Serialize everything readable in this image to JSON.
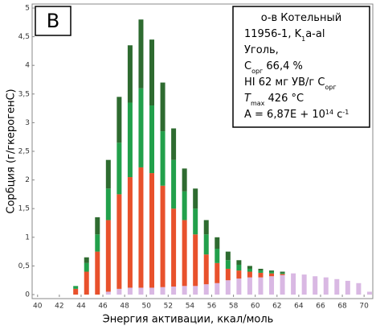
{
  "chart_data": {
    "type": "stacked_bar",
    "panel_label": "B",
    "xlabel": "Энергия активации, ккал/моль",
    "ylabel": "Сорбция  (г/гкерогенС)",
    "x": [
      43.5,
      44.5,
      45.5,
      46.5,
      47.5,
      48.5,
      49.5,
      50.5,
      51.5,
      52.5,
      53.5,
      54.5,
      55.5,
      56.5,
      57.5,
      58.5,
      59.5,
      60.5,
      61.5,
      62.5,
      63.5,
      64.5,
      65.5,
      66.5,
      67.5,
      68.5,
      69.5,
      70.5
    ],
    "series": [
      {
        "color": "#d9b8e3",
        "values": [
          0,
          0,
          0,
          0.05,
          0.1,
          0.12,
          0.12,
          0.12,
          0.13,
          0.14,
          0.15,
          0.15,
          0.18,
          0.2,
          0.25,
          0.28,
          0.3,
          0.3,
          0.32,
          0.34,
          0.37,
          0.35,
          0.32,
          0.3,
          0.27,
          0.24,
          0.2,
          0.05
        ]
      },
      {
        "color": "#e8512c",
        "values": [
          0.1,
          0.4,
          0.75,
          1.25,
          1.65,
          1.93,
          2.1,
          2.0,
          1.77,
          1.36,
          1.15,
          0.9,
          0.52,
          0.35,
          0.2,
          0.14,
          0.1,
          0.08,
          0.05,
          0.02,
          0,
          0,
          0,
          0,
          0,
          0,
          0,
          0
        ]
      },
      {
        "color": "#22a04b",
        "values": [
          0.05,
          0.15,
          0.3,
          0.55,
          0.9,
          1.3,
          1.38,
          1.18,
          0.95,
          0.85,
          0.5,
          0.45,
          0.35,
          0.25,
          0.15,
          0.1,
          0.05,
          0.04,
          0.03,
          0.02,
          0,
          0,
          0,
          0,
          0,
          0,
          0,
          0
        ]
      },
      {
        "color": "#2e6b30",
        "values": [
          0,
          0.1,
          0.3,
          0.5,
          0.8,
          1.0,
          1.2,
          1.15,
          0.85,
          0.55,
          0.4,
          0.35,
          0.25,
          0.2,
          0.15,
          0.08,
          0.05,
          0.03,
          0.02,
          0.02,
          0,
          0,
          0,
          0,
          0,
          0,
          0,
          0
        ]
      }
    ],
    "xlim": [
      39.5,
      70.8
    ],
    "xticks": [
      40,
      42,
      44,
      46,
      48,
      50,
      52,
      54,
      56,
      58,
      60,
      62,
      64,
      66,
      68,
      70
    ],
    "ylim": [
      0,
      5
    ],
    "yticks": [
      0,
      {
        "value": 0.5,
        "label": "0,5"
      },
      1,
      {
        "value": 1.5,
        "label": "1,5"
      },
      2,
      {
        "value": 2.5,
        "label": "2,5"
      },
      3,
      {
        "value": 3.5,
        "label": "3,5"
      },
      4,
      {
        "value": 4.5,
        "label": "4,5"
      },
      5
    ],
    "info_box": [
      [
        {
          "text": "о-в Котельный"
        }
      ],
      [
        {
          "text": "11956-1, K"
        },
        {
          "text": "1",
          "style": "sub"
        },
        {
          "text": "a-al"
        }
      ],
      [
        {
          "text": "Уголь,"
        }
      ],
      [
        {
          "text": "C"
        },
        {
          "text": "орг",
          "style": "sub"
        },
        {
          "text": "   66,4 %"
        }
      ],
      [
        {
          "text": "HI  62 мг УВ/г C"
        },
        {
          "text": "орг",
          "style": "sub"
        }
      ],
      [
        {
          "text": "T",
          "style": "italic"
        },
        {
          "text": "max",
          "style": "sub"
        },
        {
          "text": " 426 °C"
        }
      ],
      [
        {
          "text": "A = 6,87E + 10"
        },
        {
          "text": "14",
          "style": "sup"
        },
        {
          "text": " с"
        },
        {
          "text": "-1",
          "style": "sup"
        }
      ]
    ]
  }
}
